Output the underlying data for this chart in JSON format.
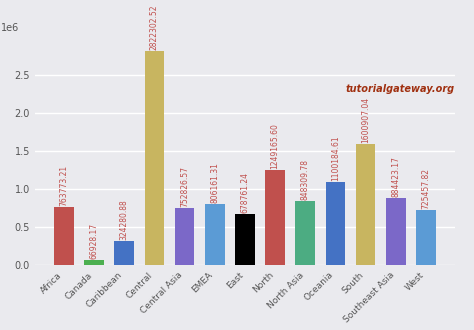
{
  "categories": [
    "Africa",
    "Canada",
    "Caribbean",
    "Central",
    "Central Asia",
    "EMEA",
    "East",
    "North",
    "North Asia",
    "Oceania",
    "South",
    "Southeast Asia",
    "West"
  ],
  "values": [
    763773.21,
    66928.17,
    324280.88,
    2822302.52,
    752826.57,
    806161.31,
    678761.24,
    1249165.6,
    848309.78,
    1100184.61,
    1600907.04,
    884423.17,
    725457.82
  ],
  "bar_colors": [
    "#c0504d",
    "#4caf50",
    "#4472c4",
    "#c8b560",
    "#7b68c8",
    "#5b9bd5",
    "#000000",
    "#c0504d",
    "#4cac82",
    "#4472c4",
    "#c8b560",
    "#7b68c8",
    "#5b9bd5"
  ],
  "bg_color": "#eaeaee",
  "annotation_color": "#c0504d",
  "watermark": "tutorialgateway.org",
  "watermark_color": "#a03010",
  "ylim": [
    0,
    3000000
  ],
  "yticks": [
    0,
    500000,
    1000000,
    1500000,
    2000000,
    2500000
  ],
  "ytick_labels": [
    "0.0",
    "0.5",
    "1.0",
    "1.5",
    "2.0",
    "2.5"
  ],
  "annotation_fontsize": 5.5
}
